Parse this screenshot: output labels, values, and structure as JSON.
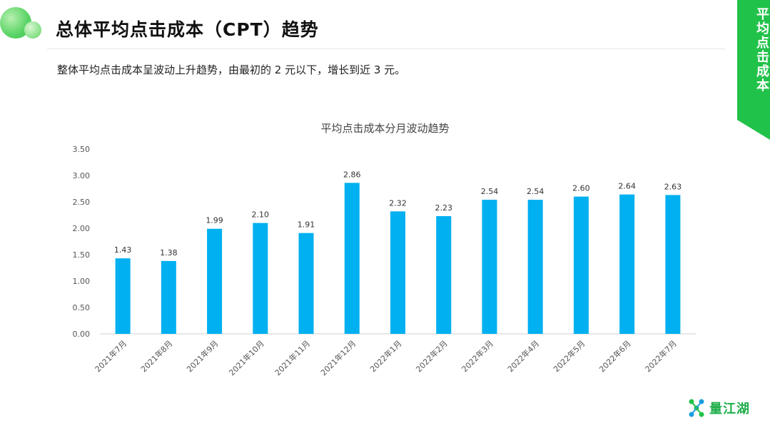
{
  "header": {
    "title": "总体平均点击成本（CPT）趋势",
    "subtitle": "整体平均点击成本呈波动上升趋势，由最初的 2 元以下，增长到近 3 元。"
  },
  "side_tab": {
    "label": "平均点击成本"
  },
  "brand": {
    "logo_icon": "dna-molecule-icon",
    "name": "量江湖"
  },
  "colors": {
    "accent": "#21c24a",
    "bar": "#00b0f0"
  },
  "chart_data": {
    "type": "bar",
    "title": "平均点击成本分月波动趋势",
    "xlabel": "",
    "ylabel": "",
    "categories": [
      "2021年7月",
      "2021年8月",
      "2021年9月",
      "2021年10月",
      "2021年11月",
      "2021年12月",
      "2022年1月",
      "2022年2月",
      "2022年3月",
      "2022年4月",
      "2022年5月",
      "2022年6月",
      "2022年7月"
    ],
    "values": [
      1.43,
      1.38,
      1.99,
      2.1,
      1.91,
      2.86,
      2.32,
      2.23,
      2.54,
      2.54,
      2.6,
      2.64,
      2.63
    ],
    "value_labels": [
      "1.43",
      "1.38",
      "1.99",
      "2.10",
      "1.91",
      "2.86",
      "2.32",
      "2.23",
      "2.54",
      "2.54",
      "2.60",
      "2.64",
      "2.63"
    ],
    "y_ticks": [
      "0.00",
      "0.50",
      "1.00",
      "1.50",
      "2.00",
      "2.50",
      "3.00",
      "3.50"
    ],
    "ylim": [
      0,
      3.5
    ],
    "grid": false,
    "legend": "none"
  }
}
